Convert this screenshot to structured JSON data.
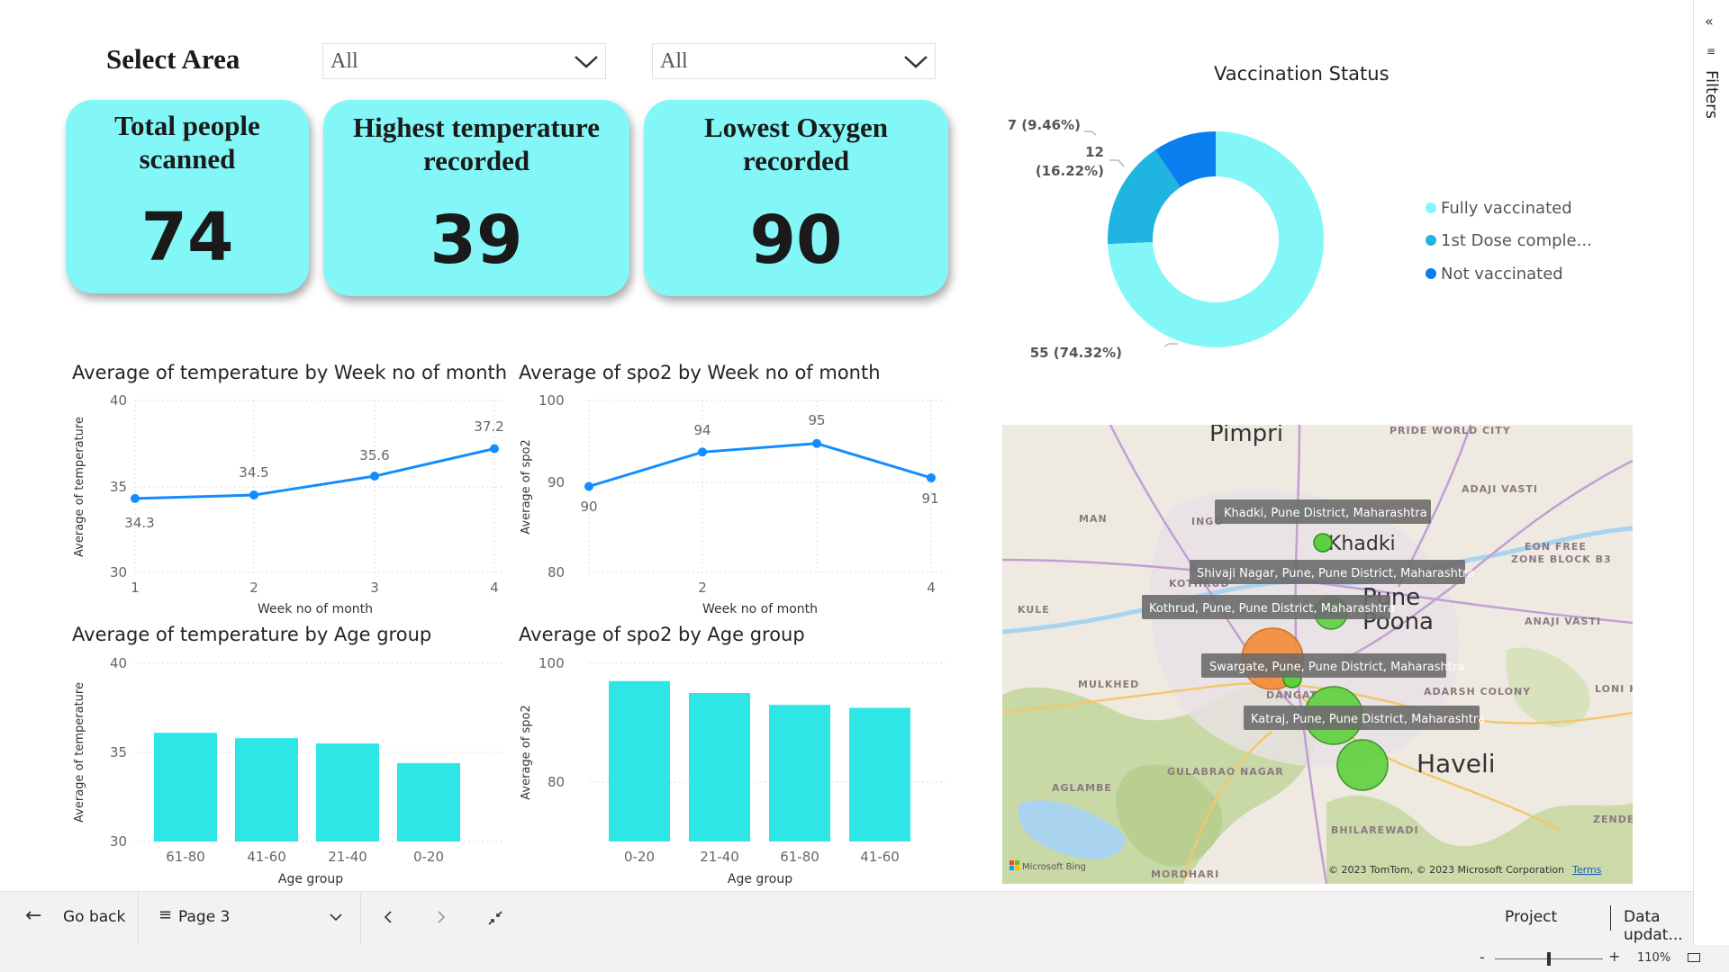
{
  "filters": {
    "label": "Select Area",
    "dropdown1": "All",
    "dropdown2": "All"
  },
  "kpis": [
    {
      "title_l1": "Total people",
      "title_l2": "scanned",
      "value": "74"
    },
    {
      "title_l1": "Highest temperature",
      "title_l2": "recorded",
      "value": "39"
    },
    {
      "title_l1": "Lowest Oxygen",
      "title_l2": "recorded",
      "value": "90"
    }
  ],
  "vaccination": {
    "title": "Vaccination Status",
    "legend": [
      "Fully vaccinated",
      "1st Dose comple...",
      "Not vaccinated"
    ],
    "colors": [
      "#83f7f7",
      "#1fb5e0",
      "#0a7ff0"
    ],
    "labels": {
      "fully": "55 (74.32%)",
      "first_a": "12",
      "first_b": "(16.22%)",
      "not": "7 (9.46%)"
    }
  },
  "charts": {
    "temp_week": {
      "title": "Average of temperature by Week no of month",
      "xlabel": "Week no of month",
      "ylabel": "Average of temperature",
      "yticks": [
        "40",
        "35",
        "30"
      ],
      "xticks": [
        "1",
        "2",
        "3",
        "4"
      ],
      "labels": [
        "34.3",
        "34.5",
        "35.6",
        "37.2"
      ]
    },
    "spo2_week": {
      "title": "Average of spo2 by Week no of month",
      "xlabel": "Week no of month",
      "ylabel": "Average of spo2",
      "yticks": [
        "100",
        "90",
        "80"
      ],
      "xticks": [
        "2",
        "4"
      ],
      "labels": [
        "90",
        "94",
        "95",
        "91"
      ]
    },
    "temp_age": {
      "title": "Average of temperature by Age group",
      "xlabel": "Age group",
      "ylabel": "Average of temperature",
      "yticks": [
        "40",
        "35",
        "30"
      ]
    },
    "spo2_age": {
      "title": "Average of spo2 by Age group",
      "xlabel": "Age group",
      "ylabel": "Average of spo2",
      "yticks": [
        "100",
        "80"
      ]
    }
  },
  "chart_data": [
    {
      "type": "line",
      "title": "Average of temperature by Week no of month",
      "xlabel": "Week no of month",
      "ylabel": "Average of temperature",
      "x": [
        1,
        2,
        3,
        4
      ],
      "values": [
        34.3,
        34.5,
        35.6,
        37.2
      ],
      "ylim": [
        30,
        40
      ],
      "grid": true,
      "color": "#118dff"
    },
    {
      "type": "line",
      "title": "Average of spo2 by Week no of month",
      "xlabel": "Week no of month",
      "ylabel": "Average of spo2",
      "x": [
        1,
        2,
        3,
        4
      ],
      "values": [
        90,
        94,
        95,
        91
      ],
      "ylim": [
        80,
        100
      ],
      "grid": true,
      "color": "#118dff"
    },
    {
      "type": "bar",
      "title": "Average of temperature by Age group",
      "xlabel": "Age group",
      "ylabel": "Average of temperature",
      "categories": [
        "61-80",
        "41-60",
        "21-40",
        "0-20"
      ],
      "values": [
        36.1,
        35.8,
        35.5,
        34.4
      ],
      "ylim": [
        30,
        40
      ],
      "color": "#2ee6e6"
    },
    {
      "type": "bar",
      "title": "Average of spo2 by Age group",
      "xlabel": "Age group",
      "ylabel": "Average of spo2",
      "categories": [
        "0-20",
        "21-40",
        "61-80",
        "41-60"
      ],
      "values": [
        97,
        95,
        93,
        92.5
      ],
      "ylim": [
        70,
        100
      ],
      "color": "#2ee6e6"
    },
    {
      "type": "pie",
      "title": "Vaccination Status",
      "categories": [
        "Fully vaccinated",
        "1st Dose comple...",
        "Not vaccinated"
      ],
      "values": [
        55,
        12,
        7
      ],
      "legend": "right"
    }
  ],
  "map": {
    "places": [
      "Pimpri",
      "PRIDE WORLD CITY",
      "ADAJI VASTI",
      "MAN",
      "Khadki",
      "EON FREE",
      "ZONE BLOCK B3",
      "KULE",
      "Pune",
      "Poona",
      "ANAJI VASTI",
      "MULKHED",
      "DANGAT",
      "ADARSH COLONY",
      "LONI K",
      "AGLAMBE",
      "GULABRAO NAGAR",
      "Haveli",
      "BHILAREWADI",
      "ZENDE",
      "MORDHARI",
      "KOTHRUD",
      "INGO"
    ],
    "tooltips": [
      "Khadki, Pune District, Maharashtra",
      "Shivaji Nagar, Pune, Pune District, Maharashtra",
      "Kothrud, Pune, Pune District, Maharashtra",
      "Swargate, Pune, Pune District, Maharashtra",
      "Katraj, Pune, Pune District, Maharashtra"
    ],
    "bing": "Microsoft Bing",
    "copyright": "© 2023 TomTom, © 2023 Microsoft Corporation",
    "terms": "Terms"
  },
  "nav": {
    "go_back": "Go back",
    "page": "Page 3",
    "project": "Project",
    "data_update": "Data updat..."
  },
  "status": {
    "zoom": "110%"
  },
  "filters_pane": {
    "label": "Filters"
  }
}
